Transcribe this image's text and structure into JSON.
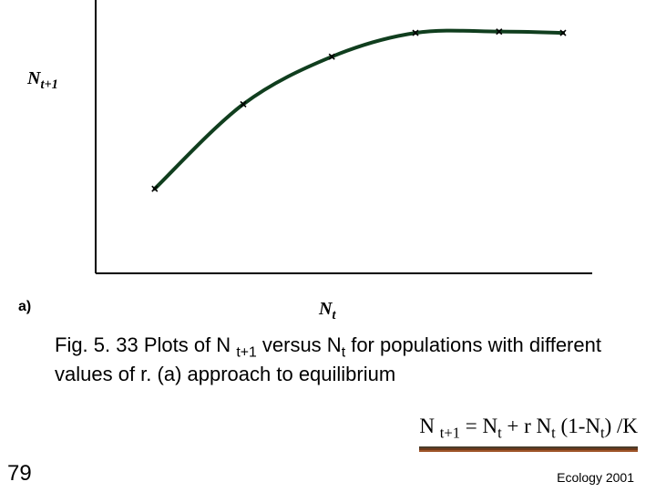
{
  "chart": {
    "type": "line",
    "background_color": "#ffffff",
    "curve_color": "#103e1e",
    "curve_width": 4,
    "axis_color": "#000000",
    "axis_width": 2,
    "marker_style": "x",
    "marker_color": "#000000",
    "marker_size": 6,
    "xlim": [
      0,
      100
    ],
    "ylim": [
      0,
      100
    ],
    "y_label_html": "N<span class=\"subscript\">t+1</span>",
    "y_label_fontsize": 20,
    "x_label_html": "N<span class=\"subscript\">t</span>",
    "x_label_fontsize": 20,
    "panel_label": "a)",
    "panel_label_fontsize": 16,
    "points": [
      {
        "x": 12,
        "y": 32
      },
      {
        "x": 30,
        "y": 64
      },
      {
        "x": 48,
        "y": 82
      },
      {
        "x": 65,
        "y": 91
      },
      {
        "x": 82,
        "y": 91.5
      },
      {
        "x": 95,
        "y": 91
      }
    ]
  },
  "caption": {
    "html": "Fig. 5. 33 Plots of N <span class=\"subscript\">t+1</span> versus N<span class=\"subscript\">t</span>  for populations with different values of r.  (a) approach to equilibrium",
    "fontsize": 22,
    "color": "#000000"
  },
  "equation": {
    "html": "N <span class=\"subscript\">t+1</span> = N<span class=\"subscript\">t</span> + r N<span class=\"subscript\">t</span> (1-N<span class=\"subscript\">t</span>) /K",
    "fontsize": 23,
    "color": "#000000"
  },
  "footer": {
    "page_number": "79",
    "page_fontsize": 24,
    "source": "Ecology 2001",
    "source_fontsize": 14,
    "rule_top": 490,
    "rule_width": 240,
    "rule_colors": [
      "#4a3c2a",
      "#6e3a1a",
      "#a0562a"
    ]
  }
}
